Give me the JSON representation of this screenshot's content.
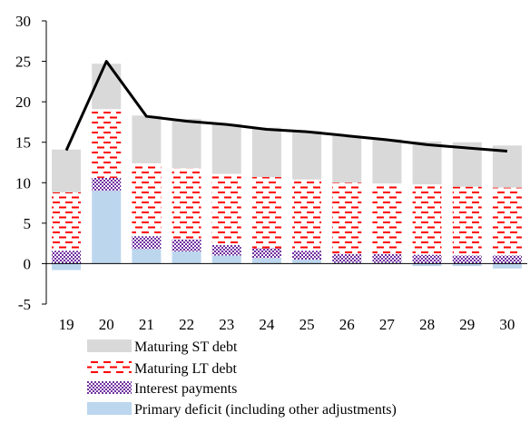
{
  "chart_data": {
    "type": "bar",
    "stacked": true,
    "categories": [
      "19",
      "20",
      "21",
      "22",
      "23",
      "24",
      "25",
      "26",
      "27",
      "28",
      "29",
      "30"
    ],
    "ylim": [
      -5,
      30
    ],
    "yticks": [
      -5,
      0,
      5,
      10,
      15,
      20,
      25,
      30
    ],
    "ytick_labels": [
      "-5",
      "0",
      "5",
      "10",
      "15",
      "20",
      "25",
      "30"
    ],
    "grid": false,
    "legend_position": "bottom",
    "series": [
      {
        "name": "Primary deficit (including other adjustments)",
        "key": "primary",
        "color": "#bcd6ee",
        "values": [
          -0.8,
          9.0,
          1.8,
          1.5,
          1.0,
          0.7,
          0.5,
          0.1,
          0.1,
          -0.3,
          -0.3,
          -0.6
        ]
      },
      {
        "name": "Interest payments",
        "key": "interest",
        "color": "#7030a0",
        "values": [
          1.6,
          1.6,
          1.6,
          1.5,
          1.3,
          1.2,
          1.1,
          1.1,
          1.1,
          1.1,
          1.0,
          1.0
        ]
      },
      {
        "name": "Maturing LT debt",
        "key": "lt",
        "color": "#ff0000",
        "values": [
          7.2,
          8.5,
          9.0,
          8.8,
          8.8,
          8.8,
          8.8,
          8.8,
          8.7,
          8.7,
          8.5,
          8.4
        ]
      },
      {
        "name": "Maturing ST debt",
        "key": "st",
        "color": "#d9d9d9",
        "values": [
          5.3,
          5.6,
          5.9,
          6.1,
          6.2,
          6.1,
          6.0,
          5.8,
          5.5,
          5.3,
          5.5,
          5.2
        ]
      }
    ],
    "line": {
      "color": "#000000",
      "values": [
        14.0,
        25.0,
        18.2,
        17.6,
        17.2,
        16.6,
        16.3,
        15.8,
        15.3,
        14.7,
        14.3,
        13.9
      ]
    },
    "legend_order": [
      "st",
      "lt",
      "interest",
      "primary"
    ]
  }
}
